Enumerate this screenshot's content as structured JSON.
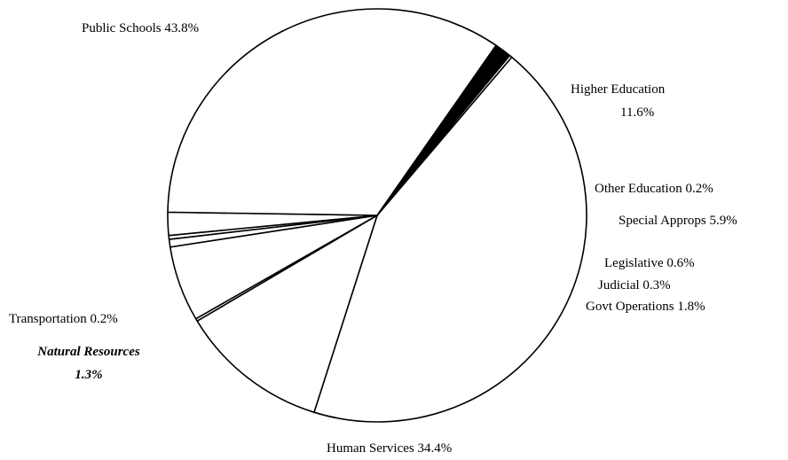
{
  "chart_data": {
    "type": "pie",
    "title": "",
    "slices": [
      {
        "name": "Public Schools",
        "value": 43.8,
        "label": "Public Schools 43.8%",
        "fill": "#ffffff"
      },
      {
        "name": "Higher Education",
        "value": 11.6,
        "label": "Higher Education",
        "label2": "11.6%",
        "fill": "#ffffff"
      },
      {
        "name": "Other Education",
        "value": 0.2,
        "label": "Other Education 0.2%",
        "fill": "#ffffff"
      },
      {
        "name": "Special Approps",
        "value": 5.9,
        "label": "Special Approps 5.9%",
        "fill": "#ffffff"
      },
      {
        "name": "Legislative",
        "value": 0.6,
        "label": "Legislative 0.6%",
        "fill": "#ffffff"
      },
      {
        "name": "Judicial",
        "value": 0.3,
        "label": "Judicial 0.3%",
        "fill": "#ffffff"
      },
      {
        "name": "Govt Operations",
        "value": 1.8,
        "label": "Govt Operations 1.8%",
        "fill": "#ffffff"
      },
      {
        "name": "Human Services",
        "value": 34.4,
        "label": "Human Services 34.4%",
        "fill": "#ffffff"
      },
      {
        "name": "Natural Resources",
        "value": 1.3,
        "label": "Natural Resources",
        "label2": "1.3%",
        "fill": "#000000",
        "emphasis": true
      },
      {
        "name": "Transportation",
        "value": 0.2,
        "label": "Transportation 0.2%",
        "fill": "#ffffff"
      }
    ],
    "legend": false,
    "colors": {
      "stroke": "#000000",
      "background": "#ffffff"
    }
  }
}
